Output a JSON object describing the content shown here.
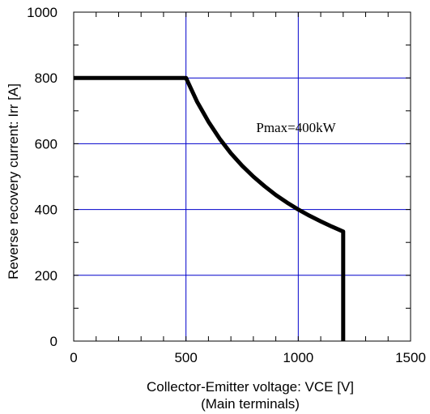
{
  "chart_data": {
    "type": "line",
    "title": "",
    "xlabel": "Collector-Emitter voltage: VCE [V]",
    "xlabel_line2": "(Main terminals)",
    "ylabel": "Reverse recovery current: Irr [A]",
    "xlim": [
      0,
      1500
    ],
    "ylim": [
      0,
      1000
    ],
    "x_ticks": [
      0,
      500,
      1000,
      1500
    ],
    "y_ticks": [
      0,
      200,
      400,
      600,
      800,
      1000
    ],
    "grid": true,
    "grid_color": "#0000cc",
    "line_color": "#000000",
    "annotation": {
      "text": "Pmax=400kW",
      "x": 990,
      "y": 635
    },
    "series": [
      {
        "x": [
          0,
          500,
          550,
          600,
          650,
          700,
          750,
          800,
          850,
          900,
          950,
          1000,
          1050,
          1100,
          1150,
          1200,
          1200
        ],
        "values": [
          800,
          800,
          727,
          667,
          615,
          571,
          533,
          500,
          471,
          444,
          421,
          400,
          381,
          364,
          348,
          333,
          0
        ]
      }
    ]
  }
}
